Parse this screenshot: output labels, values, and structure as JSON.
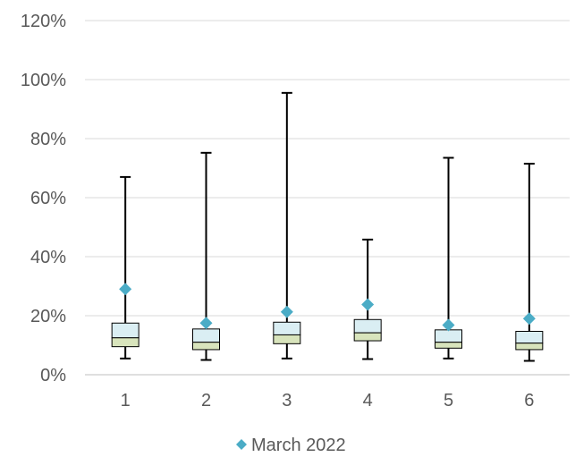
{
  "chart_data": {
    "type": "box",
    "categories": [
      "1",
      "2",
      "3",
      "4",
      "5",
      "6"
    ],
    "ylim": [
      0,
      1.2
    ],
    "y_ticks": [
      {
        "value": 0,
        "label": "0%"
      },
      {
        "value": 0.2,
        "label": "20%"
      },
      {
        "value": 0.4,
        "label": "40%"
      },
      {
        "value": 0.6,
        "label": "60%"
      },
      {
        "value": 0.8,
        "label": "80%"
      },
      {
        "value": 1.0,
        "label": "100%"
      },
      {
        "value": 1.2,
        "label": "120%"
      }
    ],
    "grid": true,
    "boxes": [
      {
        "min": 0.055,
        "q1": 0.095,
        "median": 0.125,
        "q3": 0.175,
        "max": 0.67
      },
      {
        "min": 0.05,
        "q1": 0.085,
        "median": 0.11,
        "q3": 0.155,
        "max": 0.752
      },
      {
        "min": 0.055,
        "q1": 0.105,
        "median": 0.135,
        "q3": 0.178,
        "max": 0.955
      },
      {
        "min": 0.053,
        "q1": 0.115,
        "median": 0.142,
        "q3": 0.187,
        "max": 0.458
      },
      {
        "min": 0.055,
        "q1": 0.09,
        "median": 0.11,
        "q3": 0.152,
        "max": 0.735
      },
      {
        "min": 0.047,
        "q1": 0.085,
        "median": 0.107,
        "q3": 0.147,
        "max": 0.715
      }
    ],
    "series": [
      {
        "name": "March 2022",
        "values": [
          0.29,
          0.175,
          0.213,
          0.238,
          0.168,
          0.19
        ],
        "color": "#4BACC6"
      }
    ],
    "legend_position": "bottom",
    "colors": {
      "upper_box": "#DAEEF3",
      "lower_box": "#D8E4BC",
      "box_stroke": "#000000",
      "whisker": "#000000",
      "grid": "#D9D9D9",
      "axis": "#BFBFBF"
    }
  }
}
